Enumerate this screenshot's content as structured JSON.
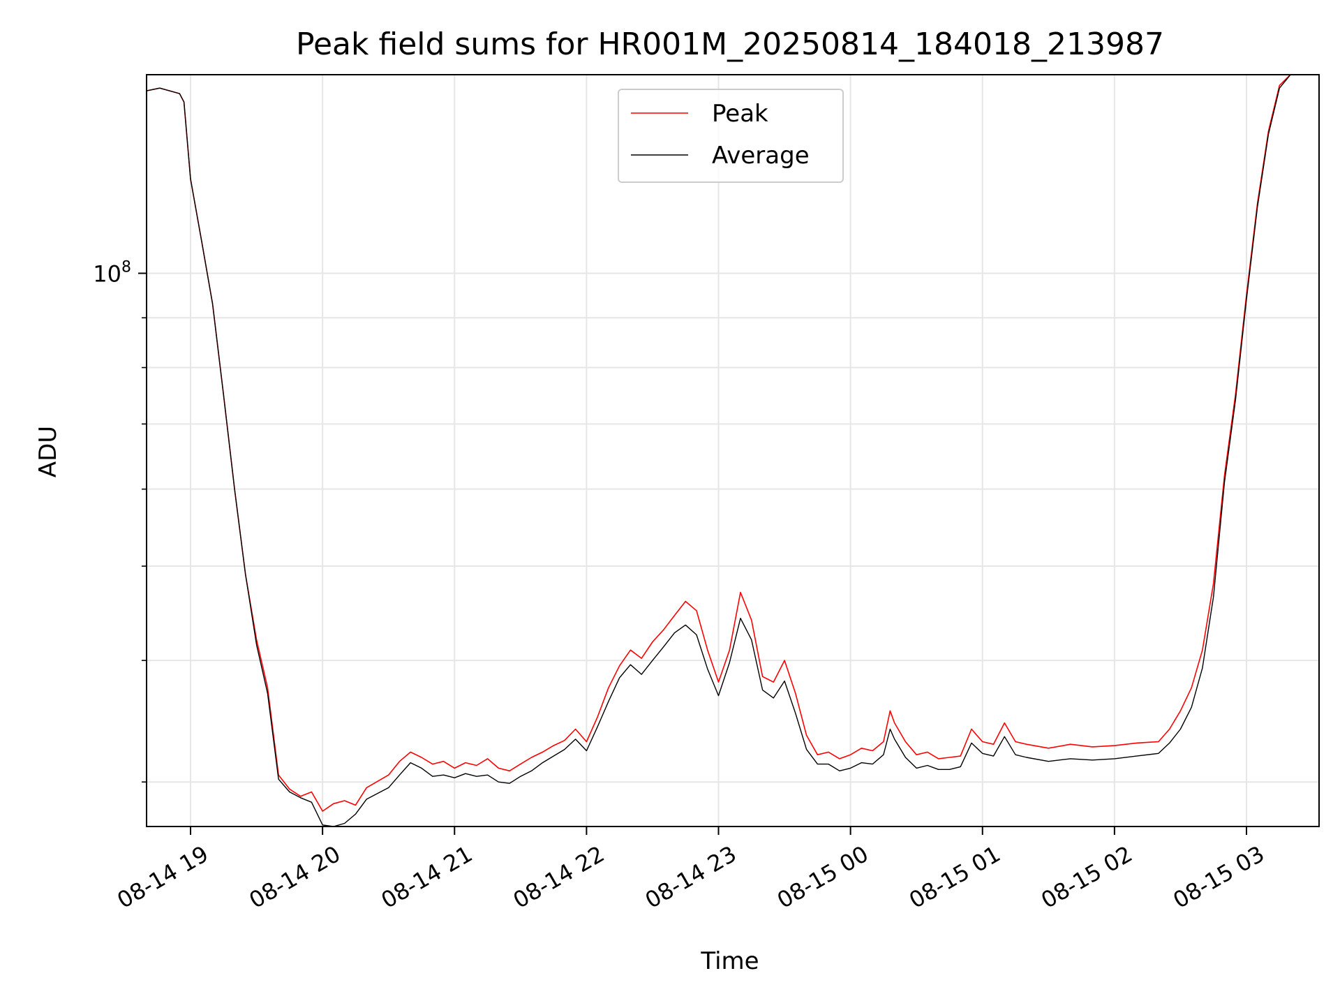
{
  "chart_data": {
    "type": "line",
    "title": "Peak field sums for HR001M_20250814_184018_213987",
    "xlabel": "Time",
    "ylabel": "ADU",
    "y_scale": "log",
    "grid": true,
    "legend_position": "top-center",
    "x_tick_labels": [
      "08-14 19",
      "08-14 20",
      "08-14 21",
      "08-14 22",
      "08-14 23",
      "08-15 00",
      "08-15 01",
      "08-15 02",
      "08-15 03"
    ],
    "y_tick_labels": [
      "10",
      "8"
    ],
    "xlim": [
      "2025-08-14 18:40",
      "2025-08-15 03:33"
    ],
    "ylim": [
      27000000,
      160000000
    ],
    "series": [
      {
        "name": "Peak",
        "color": "#ff0000",
        "points": [
          [
            "2025-08-14 18:40",
            154000000
          ],
          [
            "2025-08-14 18:46",
            155000000
          ],
          [
            "2025-08-14 18:55",
            153000000
          ],
          [
            "2025-08-14 18:57",
            150000000
          ],
          [
            "2025-08-14 19:00",
            125000000
          ],
          [
            "2025-08-14 19:05",
            108000000
          ],
          [
            "2025-08-14 19:10",
            93000000
          ],
          [
            "2025-08-14 19:15",
            75000000
          ],
          [
            "2025-08-14 19:20",
            60000000
          ],
          [
            "2025-08-14 19:25",
            49000000
          ],
          [
            "2025-08-14 19:30",
            42000000
          ],
          [
            "2025-08-14 19:35",
            37500000
          ],
          [
            "2025-08-14 19:40",
            30500000
          ],
          [
            "2025-08-14 19:45",
            29500000
          ],
          [
            "2025-08-14 19:50",
            29000000
          ],
          [
            "2025-08-14 19:55",
            29300000
          ],
          [
            "2025-08-14 20:00",
            28000000
          ],
          [
            "2025-08-14 20:05",
            28500000
          ],
          [
            "2025-08-14 20:10",
            28700000
          ],
          [
            "2025-08-14 20:15",
            28400000
          ],
          [
            "2025-08-14 20:20",
            29600000
          ],
          [
            "2025-08-14 20:30",
            30500000
          ],
          [
            "2025-08-14 20:35",
            31500000
          ],
          [
            "2025-08-14 20:40",
            32200000
          ],
          [
            "2025-08-14 20:45",
            31800000
          ],
          [
            "2025-08-14 20:50",
            31300000
          ],
          [
            "2025-08-14 20:55",
            31500000
          ],
          [
            "2025-08-14 21:00",
            31000000
          ],
          [
            "2025-08-14 21:05",
            31400000
          ],
          [
            "2025-08-14 21:10",
            31200000
          ],
          [
            "2025-08-14 21:15",
            31700000
          ],
          [
            "2025-08-14 21:20",
            31000000
          ],
          [
            "2025-08-14 21:25",
            30800000
          ],
          [
            "2025-08-14 21:30",
            31300000
          ],
          [
            "2025-08-14 21:35",
            31800000
          ],
          [
            "2025-08-14 21:40",
            32200000
          ],
          [
            "2025-08-14 21:45",
            32700000
          ],
          [
            "2025-08-14 21:50",
            33100000
          ],
          [
            "2025-08-14 21:55",
            34000000
          ],
          [
            "2025-08-14 22:00",
            33000000
          ],
          [
            "2025-08-14 22:05",
            35000000
          ],
          [
            "2025-08-14 22:10",
            37500000
          ],
          [
            "2025-08-14 22:15",
            39500000
          ],
          [
            "2025-08-14 22:20",
            41000000
          ],
          [
            "2025-08-14 22:25",
            40200000
          ],
          [
            "2025-08-14 22:30",
            41800000
          ],
          [
            "2025-08-14 22:35",
            43000000
          ],
          [
            "2025-08-14 22:40",
            44500000
          ],
          [
            "2025-08-14 22:45",
            46000000
          ],
          [
            "2025-08-14 22:50",
            45000000
          ],
          [
            "2025-08-14 22:55",
            41000000
          ],
          [
            "2025-08-14 23:00",
            38000000
          ],
          [
            "2025-08-14 23:05",
            41000000
          ],
          [
            "2025-08-14 23:10",
            47000000
          ],
          [
            "2025-08-14 23:15",
            44000000
          ],
          [
            "2025-08-14 23:20",
            38500000
          ],
          [
            "2025-08-14 23:25",
            38000000
          ],
          [
            "2025-08-14 23:30",
            40000000
          ],
          [
            "2025-08-14 23:35",
            37000000
          ],
          [
            "2025-08-14 23:40",
            33500000
          ],
          [
            "2025-08-14 23:45",
            32000000
          ],
          [
            "2025-08-14 23:50",
            32200000
          ],
          [
            "2025-08-14 23:55",
            31700000
          ],
          [
            "2025-08-15 00:00",
            32000000
          ],
          [
            "2025-08-15 00:05",
            32500000
          ],
          [
            "2025-08-15 00:10",
            32300000
          ],
          [
            "2025-08-15 00:15",
            33000000
          ],
          [
            "2025-08-15 00:18",
            35500000
          ],
          [
            "2025-08-15 00:20",
            34500000
          ],
          [
            "2025-08-15 00:25",
            33000000
          ],
          [
            "2025-08-15 00:30",
            32000000
          ],
          [
            "2025-08-15 00:35",
            32200000
          ],
          [
            "2025-08-15 00:40",
            31700000
          ],
          [
            "2025-08-15 00:45",
            31800000
          ],
          [
            "2025-08-15 00:50",
            31900000
          ],
          [
            "2025-08-15 00:55",
            34000000
          ],
          [
            "2025-08-15 01:00",
            33000000
          ],
          [
            "2025-08-15 01:05",
            32800000
          ],
          [
            "2025-08-15 01:10",
            34500000
          ],
          [
            "2025-08-15 01:15",
            33000000
          ],
          [
            "2025-08-15 01:20",
            32800000
          ],
          [
            "2025-08-15 01:30",
            32500000
          ],
          [
            "2025-08-15 01:40",
            32800000
          ],
          [
            "2025-08-15 01:50",
            32600000
          ],
          [
            "2025-08-15 02:00",
            32700000
          ],
          [
            "2025-08-15 02:10",
            32900000
          ],
          [
            "2025-08-15 02:20",
            33000000
          ],
          [
            "2025-08-15 02:25",
            34000000
          ],
          [
            "2025-08-15 02:30",
            35500000
          ],
          [
            "2025-08-15 02:35",
            37500000
          ],
          [
            "2025-08-15 02:40",
            41000000
          ],
          [
            "2025-08-15 02:45",
            48000000
          ],
          [
            "2025-08-15 02:50",
            62000000
          ],
          [
            "2025-08-15 02:55",
            75000000
          ],
          [
            "2025-08-15 03:00",
            95000000
          ],
          [
            "2025-08-15 03:05",
            118000000
          ],
          [
            "2025-08-15 03:10",
            140000000
          ],
          [
            "2025-08-15 03:15",
            156000000
          ],
          [
            "2025-08-15 03:20",
            162000000
          ]
        ]
      },
      {
        "name": "Average",
        "color": "#000000",
        "points": [
          [
            "2025-08-14 18:40",
            154000000
          ],
          [
            "2025-08-14 18:46",
            155000000
          ],
          [
            "2025-08-14 18:55",
            153000000
          ],
          [
            "2025-08-14 18:57",
            150000000
          ],
          [
            "2025-08-14 19:00",
            125000000
          ],
          [
            "2025-08-14 19:05",
            108000000
          ],
          [
            "2025-08-14 19:10",
            93000000
          ],
          [
            "2025-08-14 19:15",
            75000000
          ],
          [
            "2025-08-14 19:20",
            60000000
          ],
          [
            "2025-08-14 19:25",
            49000000
          ],
          [
            "2025-08-14 19:30",
            41500000
          ],
          [
            "2025-08-14 19:35",
            37000000
          ],
          [
            "2025-08-14 19:40",
            30200000
          ],
          [
            "2025-08-14 19:45",
            29300000
          ],
          [
            "2025-08-14 19:50",
            28900000
          ],
          [
            "2025-08-14 19:55",
            28600000
          ],
          [
            "2025-08-14 20:00",
            27100000
          ],
          [
            "2025-08-14 20:05",
            27000000
          ],
          [
            "2025-08-14 20:10",
            27200000
          ],
          [
            "2025-08-14 20:15",
            27800000
          ],
          [
            "2025-08-14 20:20",
            28800000
          ],
          [
            "2025-08-14 20:30",
            29600000
          ],
          [
            "2025-08-14 20:35",
            30500000
          ],
          [
            "2025-08-14 20:40",
            31400000
          ],
          [
            "2025-08-14 20:45",
            31000000
          ],
          [
            "2025-08-14 20:50",
            30400000
          ],
          [
            "2025-08-14 20:55",
            30500000
          ],
          [
            "2025-08-14 21:00",
            30300000
          ],
          [
            "2025-08-14 21:05",
            30600000
          ],
          [
            "2025-08-14 21:10",
            30400000
          ],
          [
            "2025-08-14 21:15",
            30500000
          ],
          [
            "2025-08-14 21:20",
            30000000
          ],
          [
            "2025-08-14 21:25",
            29900000
          ],
          [
            "2025-08-14 21:30",
            30400000
          ],
          [
            "2025-08-14 21:35",
            30800000
          ],
          [
            "2025-08-14 21:40",
            31400000
          ],
          [
            "2025-08-14 21:45",
            31900000
          ],
          [
            "2025-08-14 21:50",
            32400000
          ],
          [
            "2025-08-14 21:55",
            33200000
          ],
          [
            "2025-08-14 22:00",
            32300000
          ],
          [
            "2025-08-14 22:05",
            34200000
          ],
          [
            "2025-08-14 22:10",
            36300000
          ],
          [
            "2025-08-14 22:15",
            38400000
          ],
          [
            "2025-08-14 22:20",
            39600000
          ],
          [
            "2025-08-14 22:25",
            38700000
          ],
          [
            "2025-08-14 22:30",
            40000000
          ],
          [
            "2025-08-14 22:35",
            41300000
          ],
          [
            "2025-08-14 22:40",
            42700000
          ],
          [
            "2025-08-14 22:45",
            43500000
          ],
          [
            "2025-08-14 22:50",
            42500000
          ],
          [
            "2025-08-14 22:55",
            39200000
          ],
          [
            "2025-08-14 23:00",
            36800000
          ],
          [
            "2025-08-14 23:05",
            39800000
          ],
          [
            "2025-08-14 23:10",
            44200000
          ],
          [
            "2025-08-14 23:15",
            42000000
          ],
          [
            "2025-08-14 23:20",
            37300000
          ],
          [
            "2025-08-14 23:25",
            36600000
          ],
          [
            "2025-08-14 23:30",
            38100000
          ],
          [
            "2025-08-14 23:35",
            35300000
          ],
          [
            "2025-08-14 23:40",
            32400000
          ],
          [
            "2025-08-14 23:45",
            31300000
          ],
          [
            "2025-08-14 23:50",
            31300000
          ],
          [
            "2025-08-14 23:55",
            30800000
          ],
          [
            "2025-08-15 00:00",
            31000000
          ],
          [
            "2025-08-15 00:05",
            31400000
          ],
          [
            "2025-08-15 00:10",
            31300000
          ],
          [
            "2025-08-15 00:15",
            32000000
          ],
          [
            "2025-08-15 00:18",
            34000000
          ],
          [
            "2025-08-15 00:20",
            33200000
          ],
          [
            "2025-08-15 00:25",
            31800000
          ],
          [
            "2025-08-15 00:30",
            31000000
          ],
          [
            "2025-08-15 00:35",
            31200000
          ],
          [
            "2025-08-15 00:40",
            30900000
          ],
          [
            "2025-08-15 00:45",
            30900000
          ],
          [
            "2025-08-15 00:50",
            31100000
          ],
          [
            "2025-08-15 00:55",
            32900000
          ],
          [
            "2025-08-15 01:00",
            32100000
          ],
          [
            "2025-08-15 01:05",
            31900000
          ],
          [
            "2025-08-15 01:10",
            33400000
          ],
          [
            "2025-08-15 01:15",
            32000000
          ],
          [
            "2025-08-15 01:20",
            31800000
          ],
          [
            "2025-08-15 01:30",
            31500000
          ],
          [
            "2025-08-15 01:40",
            31700000
          ],
          [
            "2025-08-15 01:50",
            31600000
          ],
          [
            "2025-08-15 02:00",
            31700000
          ],
          [
            "2025-08-15 02:10",
            31900000
          ],
          [
            "2025-08-15 02:20",
            32100000
          ],
          [
            "2025-08-15 02:25",
            32900000
          ],
          [
            "2025-08-15 02:30",
            34000000
          ],
          [
            "2025-08-15 02:35",
            35800000
          ],
          [
            "2025-08-15 02:40",
            39300000
          ],
          [
            "2025-08-15 02:45",
            46500000
          ],
          [
            "2025-08-15 02:50",
            61000000
          ],
          [
            "2025-08-15 02:55",
            74000000
          ],
          [
            "2025-08-15 03:00",
            94000000
          ],
          [
            "2025-08-15 03:05",
            117000000
          ],
          [
            "2025-08-15 03:10",
            139000000
          ],
          [
            "2025-08-15 03:15",
            155000000
          ],
          [
            "2025-08-15 03:20",
            162000000
          ]
        ]
      }
    ]
  }
}
